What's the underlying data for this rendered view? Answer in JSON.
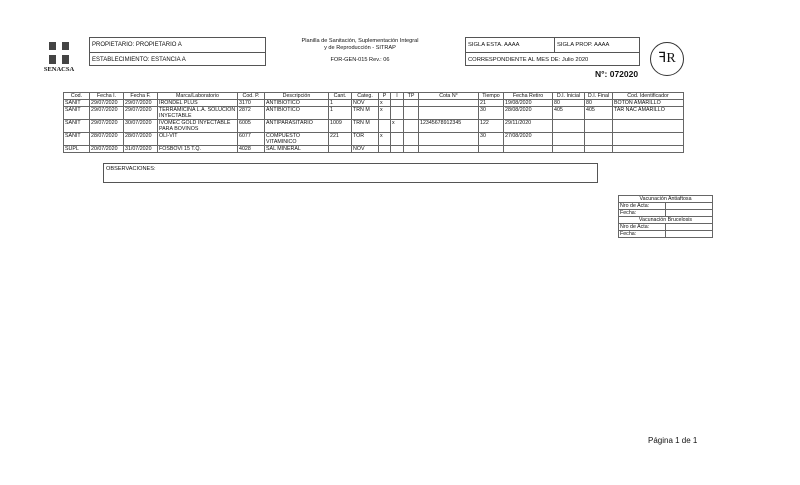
{
  "logo": {
    "text": "SENACSA"
  },
  "header": {
    "propietario": "PROPIETARIO: PROPIETARIO A",
    "establecimiento": "ESTABLECIMIENTO: ESTANCIA A",
    "title_line1": "Planilla de Sanitación, Suplementación Integral",
    "title_line2": "y de Reproducción - SITRAP",
    "form_code": "FOR-GEN-015 Rev.: 06",
    "sigla_esta": "SIGLA ESTA. AAAA",
    "sigla_prop": "SIGLA PROP. AAAA",
    "mes": "CORRESPONDIENTE AL MES DE: Julio 2020",
    "numero": "N°: 072020",
    "seal": "FR"
  },
  "table": {
    "columns": [
      "Cod.",
      "Fecha I.",
      "Fecha F.",
      "Marca/Laboratorio",
      "Cod. P.",
      "Descripción",
      "Cant.",
      "Categ.",
      "P",
      "I",
      "TP",
      "Cota N°",
      "Tiempo",
      "Fecha Retiro",
      "D.I. Inicial",
      "D.I. Final",
      "Cod. Identificador"
    ],
    "rows": [
      [
        "SANIT",
        "29/07/2020",
        "29/07/2020",
        "IRONDEL PLUS",
        "3170",
        "ANTIBIOTICO",
        "1",
        "NOV",
        "x",
        "",
        "",
        "",
        "21",
        "19/08/2020",
        "80",
        "80",
        "BOTON AMARILLO"
      ],
      [
        "SANIT",
        "29/07/2020",
        "29/07/2020",
        "TERRAMICINA L.A. SOLUCION INYECTABLE",
        "2872",
        "ANTIBIOTICO",
        "1",
        "TRN M",
        "x",
        "",
        "",
        "",
        "30",
        "28/08/2020",
        "405",
        "405",
        "TAR NAC AMARILLO"
      ],
      [
        "SANIT",
        "29/07/2020",
        "30/07/2020",
        "IVOMEC GOLD INYECTABLE PARA BOVINOS",
        "6005",
        "ANTIPARASITARIO",
        "1009",
        "TRN M",
        "",
        "x",
        "",
        "12345678912345",
        "122",
        "29/11/2020",
        "",
        "",
        ""
      ],
      [
        "SANIT",
        "28/07/2020",
        "28/07/2020",
        "OLI-VIT",
        "6077",
        "COMPUESTO VITAMINICO",
        "221",
        "TOR",
        "x",
        "",
        "",
        "",
        "30",
        "27/08/2020",
        "",
        "",
        ""
      ],
      [
        "SUPL",
        "20/07/2020",
        "31/07/2020",
        "FOSBOVI 15 T.Q.",
        "4028",
        "SAL MINERAL",
        "",
        "NOV",
        "",
        "",
        "",
        "",
        "",
        "",
        "",
        "",
        ""
      ]
    ]
  },
  "observaciones": "OBSERVACIONES:",
  "vacunacion": {
    "aftosa_title": "Vacunación Antiaftosa",
    "brucelosis_title": "Vacunación Brucelosis",
    "nro_acta": "Nro de Acta:",
    "fecha": "Fecha:"
  },
  "footer": {
    "page": "Página 1 de 1"
  }
}
